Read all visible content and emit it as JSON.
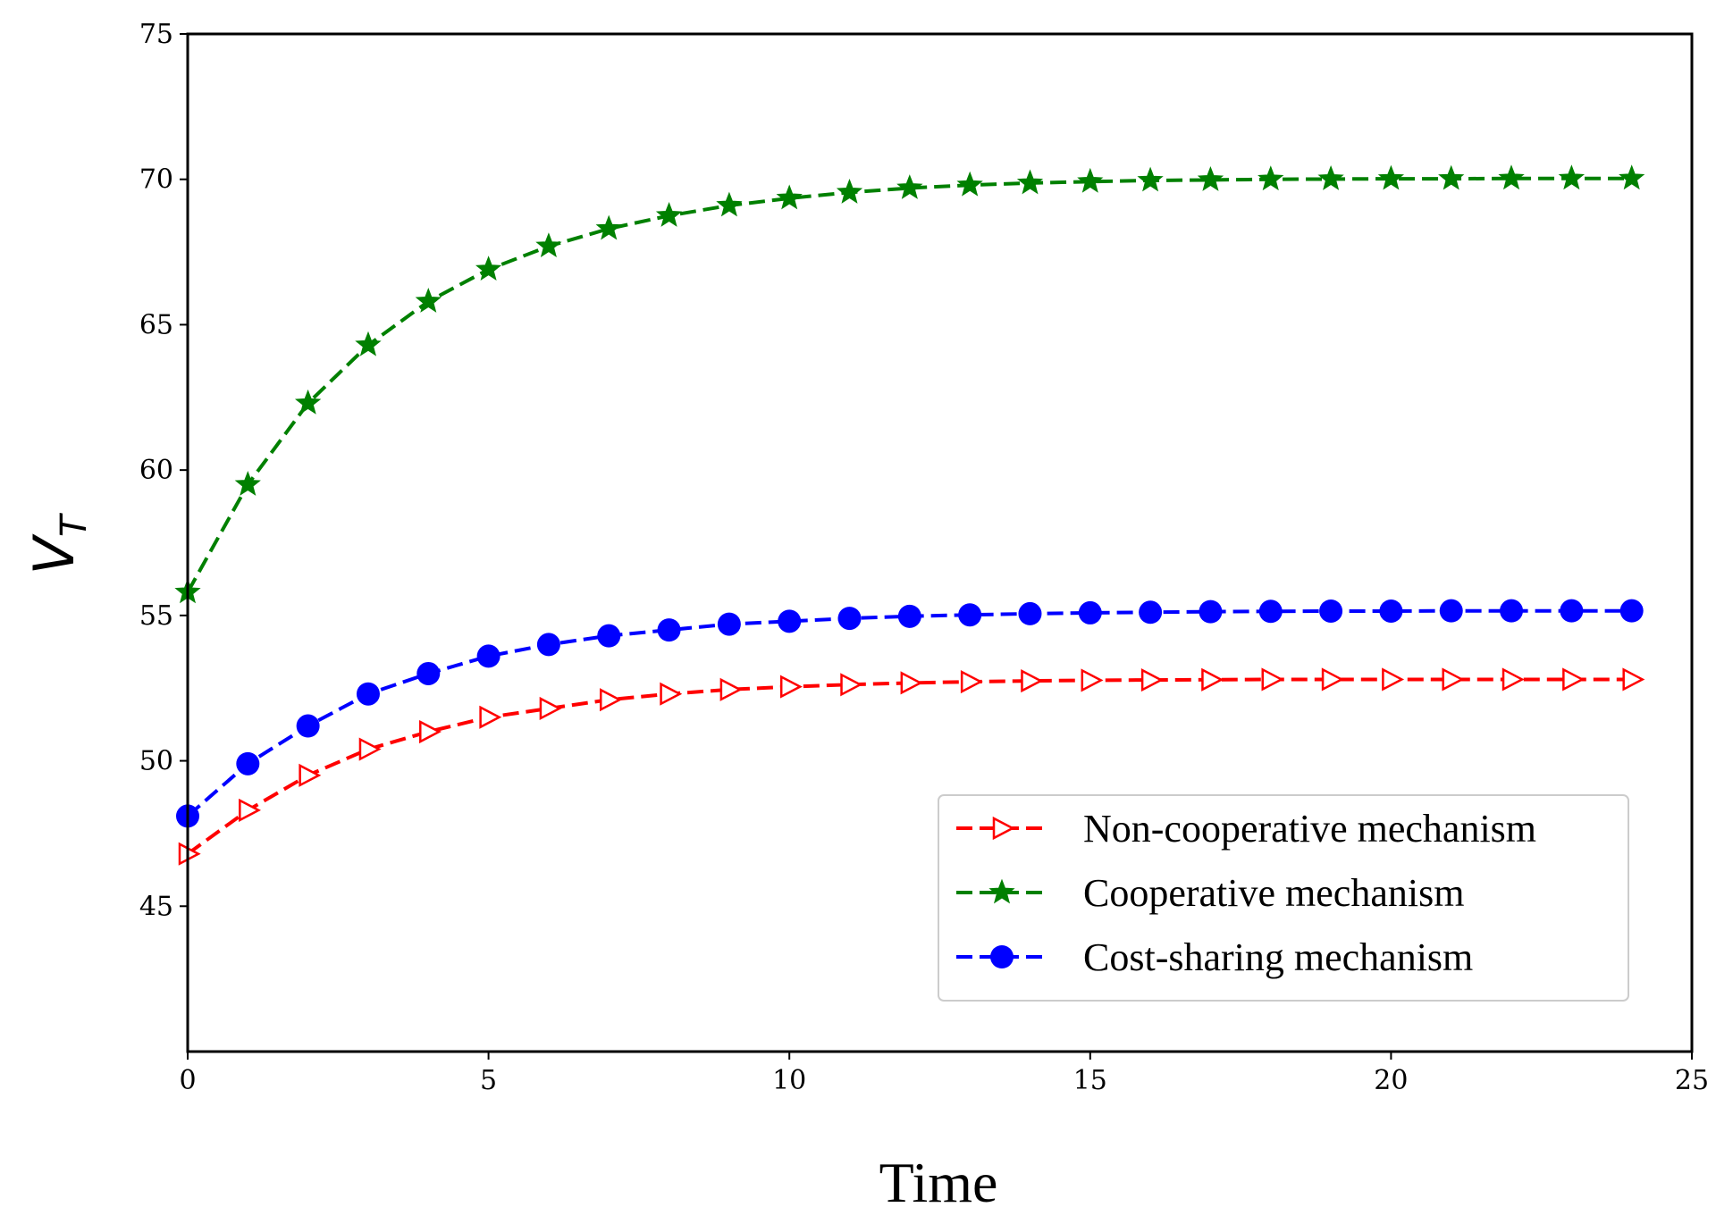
{
  "chart_data": {
    "type": "line",
    "title": "",
    "xlabel": "Time",
    "ylabel": "V",
    "ylabel_subscript": "T",
    "xlim": [
      0,
      25
    ],
    "ylim": [
      40,
      75
    ],
    "xticks": [
      0,
      5,
      10,
      15,
      20,
      25
    ],
    "yticks": [
      45,
      50,
      55,
      60,
      65,
      70,
      75
    ],
    "grid": false,
    "legend_position": "lower-right",
    "x": [
      0,
      1,
      2,
      3,
      4,
      5,
      6,
      7,
      8,
      9,
      10,
      11,
      12,
      13,
      14,
      15,
      16,
      17,
      18,
      19,
      20,
      21,
      22,
      23,
      24
    ],
    "series": [
      {
        "name": "Non-cooperative mechanism",
        "color": "#ff0000",
        "marker": "triangle-right-open",
        "values": [
          46.8,
          48.3,
          49.5,
          50.4,
          51.0,
          51.5,
          51.8,
          52.1,
          52.3,
          52.45,
          52.55,
          52.62,
          52.68,
          52.72,
          52.75,
          52.77,
          52.78,
          52.79,
          52.8,
          52.8,
          52.8,
          52.8,
          52.8,
          52.8,
          52.8
        ]
      },
      {
        "name": "Cooperative mechanism",
        "color": "#008000",
        "marker": "star",
        "values": [
          55.8,
          59.5,
          62.3,
          64.3,
          65.8,
          66.9,
          67.7,
          68.3,
          68.75,
          69.1,
          69.35,
          69.55,
          69.7,
          69.8,
          69.87,
          69.92,
          69.96,
          69.98,
          70.0,
          70.01,
          70.02,
          70.02,
          70.03,
          70.03,
          70.03
        ]
      },
      {
        "name": "Cost-sharing mechanism",
        "color": "#0000ff",
        "marker": "circle",
        "values": [
          48.1,
          49.9,
          51.2,
          52.3,
          53.0,
          53.6,
          54.0,
          54.3,
          54.5,
          54.7,
          54.8,
          54.9,
          54.97,
          55.02,
          55.06,
          55.09,
          55.11,
          55.13,
          55.14,
          55.15,
          55.15,
          55.16,
          55.16,
          55.16,
          55.16
        ]
      }
    ]
  }
}
